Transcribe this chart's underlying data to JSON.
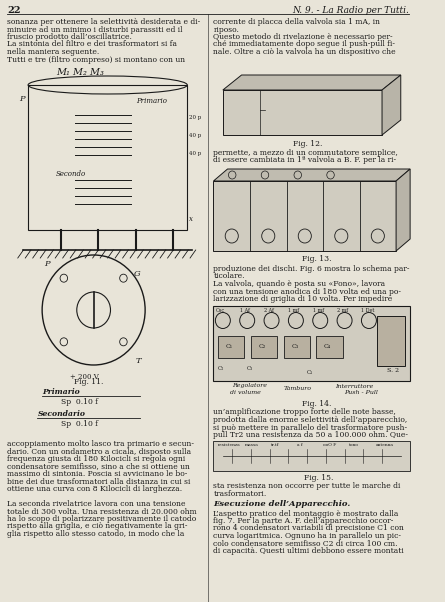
{
  "page_number": "22",
  "header_right": "N. 9. - La Radio per Tutti.",
  "background_color": "#e8e4d8",
  "text_color": "#1a1a1a",
  "left_column_lines": [
    "sonanza per ottenere la selettività desiderata e di-",
    "minuire ad un minimo i disturbi parassiti ed il",
    "fruscio prodotto dall’oscillatrice.",
    "La sintonia del filtro e dei trasformatori si fa",
    "nella maniera seguente.",
    "Tutti e tre (filtro compreso) si montano con un"
  ],
  "right_column_lines": [
    "corrente di placca della valvola sia 1 mA, in",
    "riposo.",
    "Questo metodo di rivelazione è necessario per-",
    "ché immediatamente dopo segue il push-pull fi-",
    "nale. Oltre a ciò la valvola ha un dispositivo che"
  ],
  "fig11_label": "Fig. 11.",
  "fig11_primary": "Primario",
  "fig11_primary_val": "Sp  0.10 f",
  "fig11_secondary": "Secondario",
  "fig11_secondary_val": "Sp  0.10 f",
  "fig12_label": "Fig. 12.",
  "fig13_label": "Fig. 13.",
  "fig14_label": "Fig. 14.",
  "fig15_label": "Fig. 15.",
  "right_col2_lines": [
    "permette, a mezzo di un commutatore semplice,",
    "di essere cambiata in 1ª valvola a B. F. per la ri-"
  ],
  "right_col3_lines": [
    "produzione dei dischi. Fig. 6 mostra lo schema par-",
    "ticolare.",
    "La valvola, quando è posta su «Fono», lavora",
    "con una tensione anodica di 180 volta ed una po-",
    "larizzazione di griglia di 10 volta. Per impedire"
  ],
  "right_col4_lines": [
    "un’amplificazione troppo forte delle note basse,",
    "prodotta dalla enorme selettività dell’apparecchio,",
    "si può mettere in parallelo del trasformatore push-",
    "pull Tr2 una resistenza da 50 a 100.000 ohm. Que-"
  ],
  "right_col5_lines": [
    "sta resistenza non occorre per tutte le marche di",
    "trasformatori."
  ],
  "execuzione_title": "Esecuzione dell’Apparecchio.",
  "execuzione_lines": [
    "L’aspetto pratico del montaggio è mostrato dalla",
    "fig. 7. Per la parte A. F. dell’apparecchio occor-",
    "rono 4 condensatori variabili di precisione C1 con",
    "curva logaritmica. Ognuno ha in parallelo un pic-",
    "colo condensatore semifisso C2 di circa 100 cm.",
    "di capacità. Questi ultimi debbono essere montati"
  ],
  "left_col2_lines": [
    "accoppiamento molto lasco tra primario e secun-",
    "dario. Con un ondametro a cicala, disposto sulla",
    "frequenza giusta di 180 Kilocicli si regola ogni",
    "condensatore semifìsso, sino a che si ottiene un",
    "massimo di sintonia. Poscia si avvicinano le bo-",
    "bine dei due trasformatori alla distanza in cui si",
    "ottiene una curva con 8 Kilocicli di larghezza.",
    "",
    "La seconda rivelatrice lavora con una tensione",
    "totale di 300 volta. Una resistenza di 20.000 ohm",
    "ha lo scopo di polarizzare positivamente il catodo",
    "rispetto alla griglia, e ciò negativamente la gri-",
    "glia rispetto allo stesso catodo, in modo che la"
  ],
  "M_labels": "M₁ M₂ M₃",
  "fig11_note_p": "+ 200 V",
  "fig11_note_g": "G",
  "fig11_note_t": "T"
}
